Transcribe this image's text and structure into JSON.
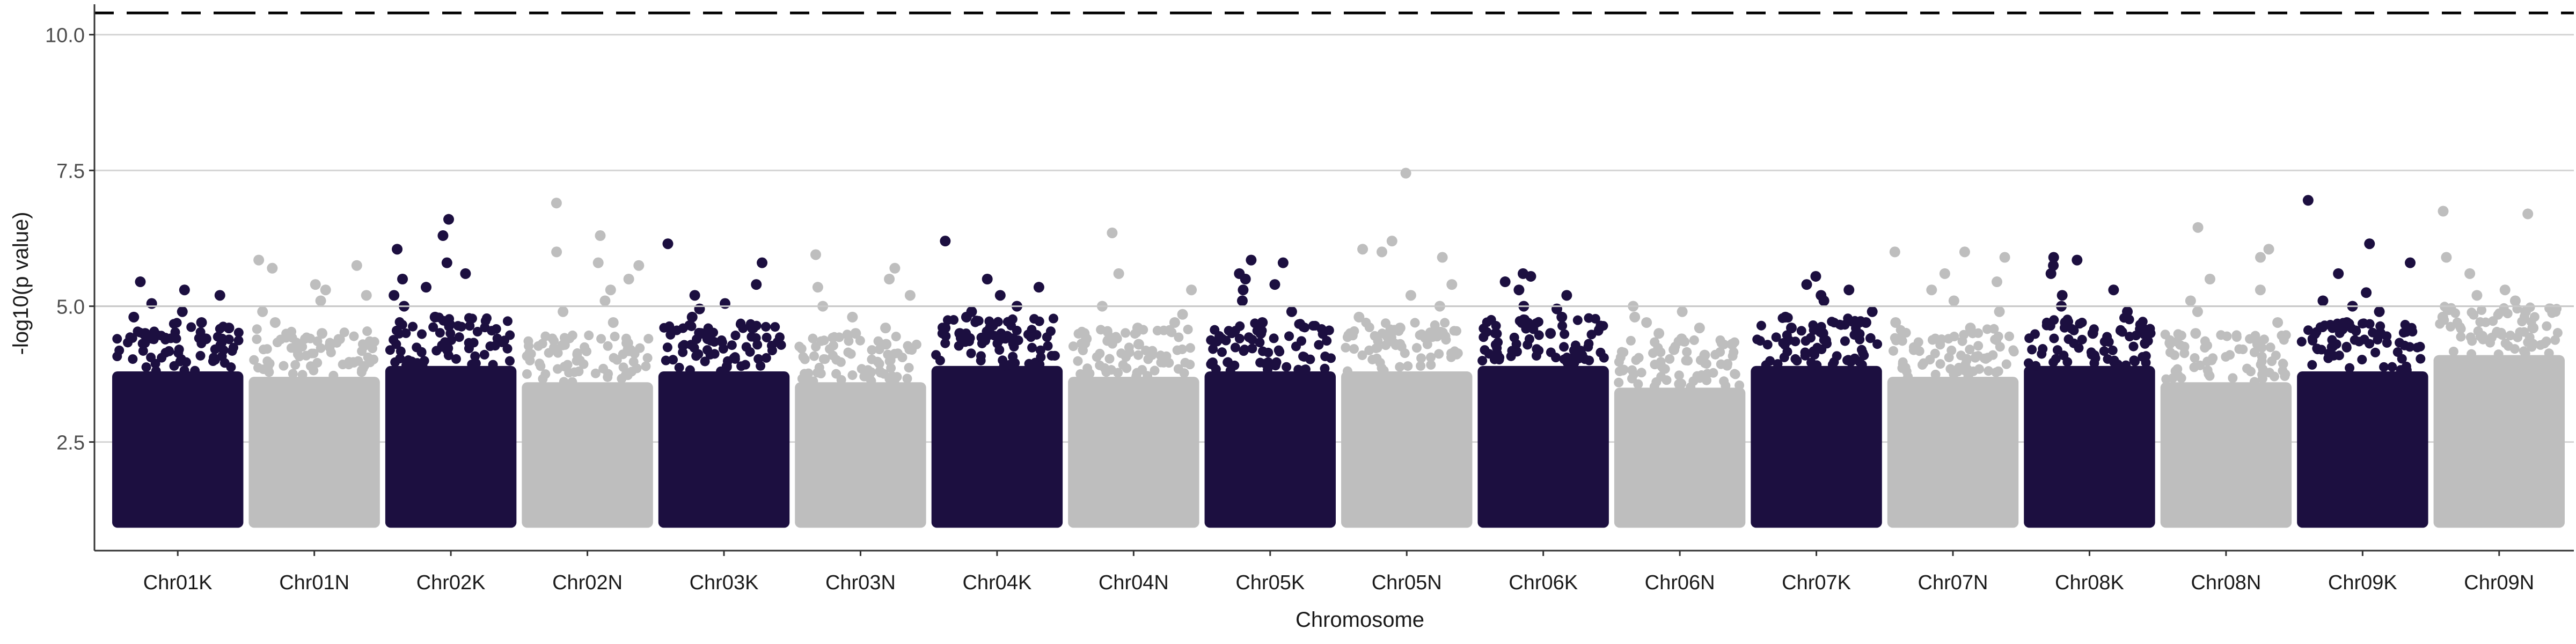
{
  "chart_data": {
    "type": "scatter",
    "subtype": "manhattan",
    "xlabel": "Chromosome",
    "ylabel": "-log10(p value)",
    "ylim": [
      0.5,
      10.5
    ],
    "yticks": [
      2.5,
      5.0,
      7.5,
      10.0
    ],
    "ytick_labels": [
      "2.5",
      "5.0",
      "7.5",
      "10.0"
    ],
    "grid": "horizontal",
    "legend": "none",
    "point_min": 1.0,
    "reference_lines": [
      {
        "value": 5.0,
        "style": "solid",
        "color": "#c8c8c8"
      },
      {
        "value": 10.4,
        "style": "dashed",
        "color": "#000000"
      }
    ],
    "colors": {
      "odd": "#1c0f40",
      "even": "#bebebe"
    },
    "chromosomes": [
      {
        "name": "Chr01K",
        "color": "odd",
        "band_top": 3.8,
        "top_points": [
          5.45,
          5.3,
          5.2,
          5.05,
          4.9,
          4.8,
          4.7,
          4.6,
          4.5,
          4.4
        ]
      },
      {
        "name": "Chr01N",
        "color": "even",
        "band_top": 3.7,
        "top_points": [
          5.85,
          5.75,
          5.7,
          5.4,
          5.3,
          5.2,
          5.1,
          4.9,
          4.7,
          4.5
        ]
      },
      {
        "name": "Chr02K",
        "color": "odd",
        "band_top": 3.9,
        "top_points": [
          6.6,
          6.3,
          6.05,
          5.8,
          5.6,
          5.5,
          5.35,
          5.2,
          5.0,
          4.8
        ]
      },
      {
        "name": "Chr02N",
        "color": "even",
        "band_top": 3.6,
        "top_points": [
          6.9,
          6.3,
          6.0,
          5.8,
          5.75,
          5.5,
          5.3,
          5.1,
          4.9,
          4.7
        ]
      },
      {
        "name": "Chr03K",
        "color": "odd",
        "band_top": 3.8,
        "top_points": [
          6.15,
          5.8,
          5.4,
          5.2,
          5.05,
          4.95,
          4.8,
          4.6,
          4.5,
          4.4
        ]
      },
      {
        "name": "Chr03N",
        "color": "even",
        "band_top": 3.6,
        "top_points": [
          5.95,
          5.7,
          5.5,
          5.35,
          5.2,
          5.0,
          4.8,
          4.6,
          4.5,
          4.3
        ]
      },
      {
        "name": "Chr04K",
        "color": "odd",
        "band_top": 3.9,
        "top_points": [
          6.2,
          5.5,
          5.35,
          5.2,
          5.0,
          4.9,
          4.8,
          4.6,
          4.5,
          4.4
        ]
      },
      {
        "name": "Chr04N",
        "color": "even",
        "band_top": 3.7,
        "top_points": [
          6.35,
          5.6,
          5.3,
          5.0,
          4.85,
          4.7,
          4.6,
          4.5,
          4.4,
          4.3
        ]
      },
      {
        "name": "Chr05K",
        "color": "odd",
        "band_top": 3.8,
        "top_points": [
          5.85,
          5.8,
          5.6,
          5.5,
          5.4,
          5.3,
          5.1,
          4.9,
          4.7,
          4.5
        ]
      },
      {
        "name": "Chr05N",
        "color": "even",
        "band_top": 3.8,
        "top_points": [
          7.45,
          6.2,
          6.05,
          6.0,
          5.9,
          5.4,
          5.2,
          5.0,
          4.8,
          4.6
        ]
      },
      {
        "name": "Chr06K",
        "color": "odd",
        "band_top": 3.9,
        "top_points": [
          5.6,
          5.55,
          5.45,
          5.3,
          5.2,
          5.0,
          4.95,
          4.8,
          4.7,
          4.5
        ]
      },
      {
        "name": "Chr06N",
        "color": "even",
        "band_top": 3.5,
        "top_points": [
          5.0,
          4.9,
          4.8,
          4.7,
          4.6,
          4.5,
          4.4,
          4.3,
          4.2,
          4.1
        ]
      },
      {
        "name": "Chr07K",
        "color": "odd",
        "band_top": 3.9,
        "top_points": [
          5.55,
          5.4,
          5.3,
          5.2,
          5.1,
          4.9,
          4.8,
          4.7,
          4.6,
          4.5
        ]
      },
      {
        "name": "Chr07N",
        "color": "even",
        "band_top": 3.7,
        "top_points": [
          6.0,
          6.0,
          5.9,
          5.6,
          5.45,
          5.3,
          5.1,
          4.9,
          4.7,
          4.6
        ]
      },
      {
        "name": "Chr08K",
        "color": "odd",
        "band_top": 3.9,
        "top_points": [
          5.9,
          5.85,
          5.75,
          5.6,
          5.3,
          5.2,
          5.0,
          4.9,
          4.7,
          4.5
        ]
      },
      {
        "name": "Chr08N",
        "color": "even",
        "band_top": 3.6,
        "top_points": [
          6.45,
          6.05,
          5.9,
          5.5,
          5.3,
          5.1,
          4.9,
          4.7,
          4.5,
          4.3
        ]
      },
      {
        "name": "Chr09K",
        "color": "odd",
        "band_top": 3.8,
        "top_points": [
          6.95,
          6.15,
          5.8,
          5.6,
          5.25,
          5.1,
          5.0,
          4.9,
          4.7,
          4.5
        ]
      },
      {
        "name": "Chr09N",
        "color": "even",
        "band_top": 4.1,
        "top_points": [
          6.75,
          6.7,
          5.9,
          5.6,
          5.3,
          5.2,
          5.1,
          4.9,
          4.8,
          4.6
        ]
      }
    ]
  }
}
